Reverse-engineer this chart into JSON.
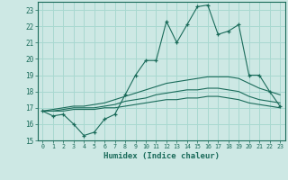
{
  "xlabel": "Humidex (Indice chaleur)",
  "bg_color": "#cde8e4",
  "grid_color": "#a8d8d0",
  "line_color": "#1a6b5a",
  "xlim": [
    -0.5,
    23.5
  ],
  "ylim": [
    15,
    23.5
  ],
  "yticks": [
    15,
    16,
    17,
    18,
    19,
    20,
    21,
    22,
    23
  ],
  "xticks": [
    0,
    1,
    2,
    3,
    4,
    5,
    6,
    7,
    8,
    9,
    10,
    11,
    12,
    13,
    14,
    15,
    16,
    17,
    18,
    19,
    20,
    21,
    22,
    23
  ],
  "main_y": [
    16.8,
    16.5,
    16.6,
    16.0,
    15.3,
    15.5,
    16.3,
    16.6,
    17.8,
    19.0,
    19.9,
    19.9,
    22.3,
    21.0,
    22.1,
    23.2,
    23.3,
    21.5,
    21.7,
    22.1,
    19.0,
    19.0,
    18.0,
    17.1
  ],
  "line2_y": [
    16.8,
    16.9,
    17.0,
    17.1,
    17.1,
    17.2,
    17.3,
    17.5,
    17.7,
    17.9,
    18.1,
    18.3,
    18.5,
    18.6,
    18.7,
    18.8,
    18.9,
    18.9,
    18.9,
    18.8,
    18.5,
    18.2,
    18.0,
    17.8
  ],
  "line3_y": [
    16.8,
    16.8,
    16.9,
    17.0,
    17.0,
    17.0,
    17.1,
    17.2,
    17.4,
    17.5,
    17.6,
    17.8,
    17.9,
    18.0,
    18.1,
    18.1,
    18.2,
    18.2,
    18.1,
    18.0,
    17.7,
    17.5,
    17.4,
    17.3
  ],
  "line4_y": [
    16.8,
    16.8,
    16.8,
    16.9,
    16.9,
    16.9,
    17.0,
    17.0,
    17.1,
    17.2,
    17.3,
    17.4,
    17.5,
    17.5,
    17.6,
    17.6,
    17.7,
    17.7,
    17.6,
    17.5,
    17.3,
    17.2,
    17.1,
    17.0
  ]
}
